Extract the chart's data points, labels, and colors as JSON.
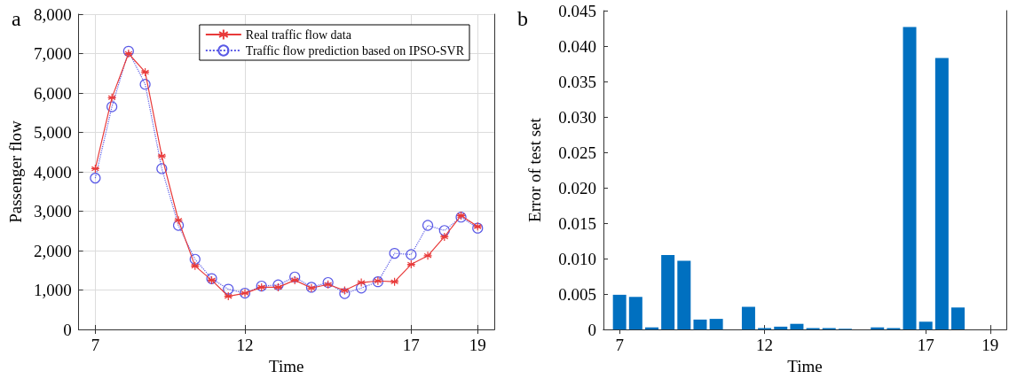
{
  "chart_data": [
    {
      "type": "line",
      "title": "a",
      "xlabel": "Time",
      "ylabel": "Passenger flow",
      "categories": [
        "7",
        null,
        null,
        null,
        null,
        null,
        null,
        null,
        null,
        "12",
        null,
        null,
        null,
        null,
        null,
        null,
        null,
        null,
        null,
        "17",
        null,
        null,
        null,
        "19"
      ],
      "series": [
        {
          "name": "Real traffic flow data",
          "color": "#e83a3a",
          "marker": "cross",
          "line_style": "solid",
          "values": [
            4080,
            5880,
            7000,
            6530,
            4400,
            2770,
            1610,
            1250,
            840,
            920,
            1070,
            1070,
            1250,
            1050,
            1140,
            990,
            1190,
            1230,
            1210,
            1650,
            1870,
            2350,
            2890,
            2610
          ]
        },
        {
          "name": "Traffic flow prediction based on IPSO-SVR",
          "color": "#5a5ae6",
          "marker": "circle",
          "line_style": "dotted",
          "values": [
            3840,
            5650,
            7060,
            6220,
            4080,
            2640,
            1780,
            1290,
            1020,
            920,
            1100,
            1130,
            1330,
            1070,
            1190,
            910,
            1050,
            1210,
            1930,
            1900,
            2640,
            2510,
            2850,
            2570
          ]
        }
      ],
      "ylim": [
        0,
        8000
      ],
      "yticks": [
        0,
        {
          "value": 1000,
          "label": "1,000"
        },
        {
          "value": 2000,
          "label": "2,000"
        },
        {
          "value": 3000,
          "label": "3,000"
        },
        {
          "value": 4000,
          "label": "4,000"
        },
        {
          "value": 5000,
          "label": "5,000"
        },
        {
          "value": 6000,
          "label": "6,000"
        },
        {
          "value": 7000,
          "label": "7,000"
        },
        {
          "value": 8000,
          "label": "8,000"
        }
      ],
      "grid": true,
      "legend": "top right"
    },
    {
      "type": "bar",
      "title": "b",
      "xlabel": "Time",
      "ylabel": "Error of test set",
      "color": "#0070c0",
      "categories": [
        "7",
        null,
        null,
        null,
        null,
        null,
        null,
        null,
        null,
        "12",
        null,
        null,
        null,
        null,
        null,
        null,
        null,
        null,
        null,
        "17",
        null,
        null,
        null,
        "19"
      ],
      "values": [
        0.0049,
        0.0046,
        0.0003,
        0.0105,
        0.0097,
        0.0014,
        0.0015,
        0,
        0.0032,
        0.0002,
        0.0004,
        0.0008,
        0.0002,
        0.0002,
        0.0001,
        0,
        0.0003,
        0.0002,
        0.0427,
        0.0011,
        0.0383,
        0.0031,
        0,
        0
      ],
      "ylim": [
        0,
        0.045
      ],
      "yticks": [
        0,
        {
          "value": 0.005,
          "label": "0.005"
        },
        {
          "value": 0.01,
          "label": "0.010"
        },
        {
          "value": 0.015,
          "label": "0.015"
        },
        {
          "value": 0.02,
          "label": "0.020"
        },
        {
          "value": 0.025,
          "label": "0.025"
        },
        {
          "value": 0.03,
          "label": "0.030"
        },
        {
          "value": 0.035,
          "label": "0.035"
        },
        {
          "value": 0.04,
          "label": "0.040"
        },
        {
          "value": 0.045,
          "label": "0.045"
        }
      ],
      "grid": false
    }
  ]
}
